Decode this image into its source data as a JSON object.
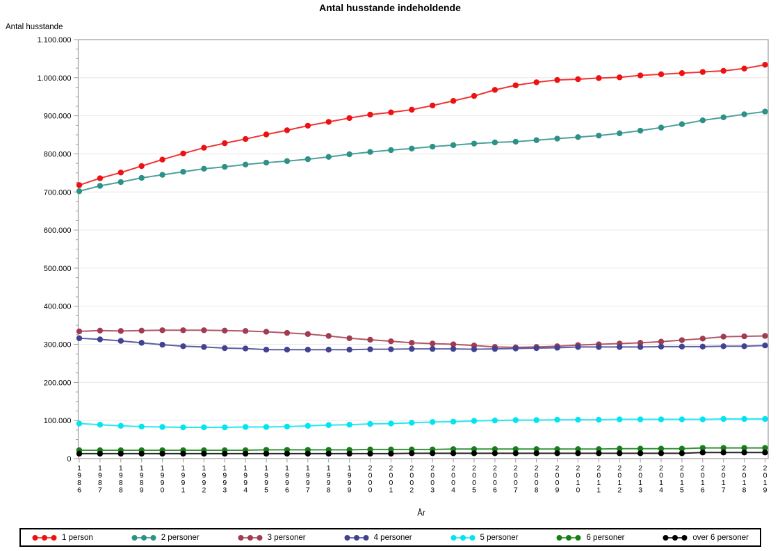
{
  "page": {
    "title": "Antal husstande indeholdende"
  },
  "chart_data": {
    "type": "line",
    "title": "Antal husstande indeholdende",
    "xlabel": "År",
    "ylabel": "Antal husstande",
    "x": [
      1986,
      1987,
      1988,
      1989,
      1990,
      1991,
      1992,
      1993,
      1994,
      1995,
      1996,
      1997,
      1998,
      1999,
      2000,
      2001,
      2002,
      2003,
      2004,
      2005,
      2006,
      2007,
      2008,
      2009,
      2010,
      2011,
      2012,
      2013,
      2014,
      2015,
      2016,
      2017,
      2018,
      2019
    ],
    "ylim": [
      0,
      1100000
    ],
    "ytick_major_step": 100000,
    "ytick_minor_step": 25000,
    "ytick_labels": [
      "0",
      "100.000",
      "200.000",
      "300.000",
      "400.000",
      "500.000",
      "600.000",
      "700.000",
      "800.000",
      "900.000",
      "1.000.000",
      "1.100.000"
    ],
    "grid": true,
    "legend_position": "bottom",
    "marker": "circle",
    "series": [
      {
        "name": "1 person",
        "color": "#EE1111",
        "values": [
          718000,
          736000,
          751000,
          768000,
          785000,
          801000,
          816000,
          828000,
          839000,
          851000,
          862000,
          874000,
          884000,
          894000,
          903000,
          909000,
          916000,
          927000,
          939000,
          952000,
          968000,
          980000,
          988000,
          994000,
          996000,
          999000,
          1001000,
          1006000,
          1009000,
          1012000,
          1015000,
          1018000,
          1024000,
          1034000
        ]
      },
      {
        "name": "2 personer",
        "color": "#2D9188",
        "values": [
          702000,
          716000,
          726000,
          737000,
          745000,
          753000,
          761000,
          766000,
          772000,
          777000,
          781000,
          786000,
          792000,
          799000,
          805000,
          810000,
          814000,
          819000,
          823000,
          827000,
          830000,
          832000,
          836000,
          840000,
          844000,
          848000,
          854000,
          861000,
          869000,
          878000,
          888000,
          896000,
          904000,
          911000
        ]
      },
      {
        "name": "3 personer",
        "color": "#A23B4F",
        "values": [
          334000,
          336000,
          335000,
          336000,
          337000,
          337000,
          337000,
          336000,
          335000,
          333000,
          330000,
          327000,
          322000,
          316000,
          312000,
          308000,
          304000,
          302000,
          300000,
          297000,
          293000,
          292000,
          293000,
          295000,
          298000,
          300000,
          302000,
          304000,
          307000,
          311000,
          315000,
          320000,
          321000,
          322000
        ]
      },
      {
        "name": "4 personer",
        "color": "#424292",
        "values": [
          316000,
          313000,
          309000,
          304000,
          299000,
          295000,
          293000,
          290000,
          289000,
          286000,
          286000,
          286000,
          286000,
          286000,
          287000,
          287000,
          288000,
          288000,
          288000,
          287000,
          288000,
          289000,
          290000,
          291000,
          293000,
          293000,
          293000,
          293000,
          294000,
          294000,
          294000,
          295000,
          295000,
          297000
        ]
      },
      {
        "name": "5 personer",
        "color": "#00E5F0",
        "values": [
          92000,
          89000,
          86000,
          84000,
          83000,
          82000,
          82000,
          82000,
          83000,
          83000,
          84000,
          86000,
          88000,
          89000,
          91000,
          92000,
          94000,
          96000,
          97000,
          99000,
          100000,
          101000,
          101000,
          102000,
          102000,
          102000,
          103000,
          103000,
          103000,
          103000,
          103000,
          104000,
          104000,
          104000
        ]
      },
      {
        "name": "6 personer",
        "color": "#158015",
        "values": [
          22000,
          22000,
          22000,
          22000,
          22000,
          22000,
          22000,
          22000,
          22000,
          23000,
          23000,
          23000,
          23000,
          23000,
          24000,
          24000,
          24000,
          24000,
          25000,
          25000,
          25000,
          25000,
          25000,
          25000,
          25000,
          25000,
          26000,
          26000,
          26000,
          26000,
          28000,
          28000,
          28000,
          28000
        ]
      },
      {
        "name": "over 6 personer",
        "color": "#000000",
        "values": [
          13000,
          13000,
          13000,
          13000,
          13000,
          13000,
          13000,
          13000,
          13000,
          13000,
          13000,
          13000,
          13000,
          13000,
          13000,
          13000,
          14000,
          14000,
          14000,
          14000,
          14000,
          14000,
          14000,
          14000,
          14000,
          14000,
          14000,
          14000,
          14000,
          14000,
          16000,
          16000,
          16000,
          16000
        ]
      }
    ],
    "axis_color": "#9B9B9B",
    "grid_color": "#E8E8E8"
  }
}
